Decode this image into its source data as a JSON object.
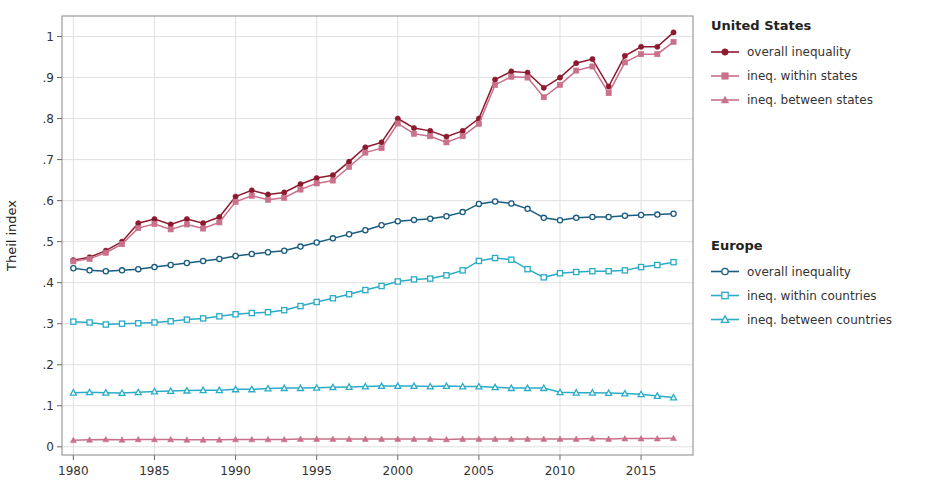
{
  "chart_data": {
    "type": "line",
    "ylabel": "Theil index",
    "x": [
      1980,
      1981,
      1982,
      1983,
      1984,
      1985,
      1986,
      1987,
      1988,
      1989,
      1990,
      1991,
      1992,
      1993,
      1994,
      1995,
      1996,
      1997,
      1998,
      1999,
      2000,
      2001,
      2002,
      2003,
      2004,
      2005,
      2006,
      2007,
      2008,
      2009,
      2010,
      2011,
      2012,
      2013,
      2014,
      2015,
      2016,
      2017
    ],
    "xlim": [
      1979.3,
      2018.2
    ],
    "xticks": [
      1980,
      1985,
      1990,
      1995,
      2000,
      2005,
      2010,
      2015
    ],
    "ylim": [
      -0.02,
      1.05
    ],
    "yticks": [
      0,
      {
        "value": 0.1,
        "label": ".1"
      },
      {
        "value": 0.2,
        "label": ".2"
      },
      {
        "value": 0.3,
        "label": ".3"
      },
      {
        "value": 0.4,
        "label": ".4"
      },
      {
        "value": 0.5,
        "label": ".5"
      },
      {
        "value": 0.6,
        "label": ".6"
      },
      {
        "value": 0.7,
        "label": ".7"
      },
      {
        "value": 0.8,
        "label": ".8"
      },
      {
        "value": 0.9,
        "label": ".9"
      },
      1
    ],
    "grid": true,
    "legend": "right",
    "series": [
      {
        "name": "overall inequality",
        "group": "United States",
        "color": "#8B1A2F",
        "marker": "circle",
        "values": [
          0.455,
          0.462,
          0.478,
          0.5,
          0.545,
          0.555,
          0.542,
          0.555,
          0.545,
          0.56,
          0.61,
          0.625,
          0.615,
          0.62,
          0.64,
          0.655,
          0.662,
          0.695,
          0.73,
          0.742,
          0.8,
          0.777,
          0.77,
          0.756,
          0.77,
          0.8,
          0.895,
          0.915,
          0.912,
          0.875,
          0.9,
          0.935,
          0.945,
          0.878,
          0.953,
          0.975,
          0.975,
          1.01
        ]
      },
      {
        "name": "ineq. within states",
        "group": "United States",
        "color": "#C9718A",
        "marker": "square",
        "values": [
          0.452,
          0.458,
          0.473,
          0.494,
          0.533,
          0.543,
          0.53,
          0.542,
          0.532,
          0.547,
          0.597,
          0.612,
          0.602,
          0.607,
          0.627,
          0.642,
          0.649,
          0.682,
          0.717,
          0.728,
          0.788,
          0.763,
          0.757,
          0.742,
          0.757,
          0.787,
          0.882,
          0.902,
          0.9,
          0.852,
          0.882,
          0.917,
          0.927,
          0.862,
          0.937,
          0.957,
          0.957,
          0.987
        ]
      },
      {
        "name": "ineq. between states",
        "group": "United States",
        "color": "#C9718A",
        "marker": "triangle",
        "values": [
          0.016,
          0.017,
          0.018,
          0.017,
          0.018,
          0.018,
          0.018,
          0.017,
          0.017,
          0.017,
          0.018,
          0.018,
          0.018,
          0.018,
          0.019,
          0.019,
          0.019,
          0.019,
          0.019,
          0.019,
          0.019,
          0.019,
          0.019,
          0.018,
          0.019,
          0.019,
          0.019,
          0.019,
          0.019,
          0.019,
          0.019,
          0.019,
          0.02,
          0.019,
          0.02,
          0.02,
          0.02,
          0.021
        ]
      },
      {
        "name": "overall inequality",
        "group": "Europe",
        "color": "#1A5C80",
        "marker": "open-circle",
        "values": [
          0.435,
          0.43,
          0.428,
          0.43,
          0.433,
          0.438,
          0.443,
          0.448,
          0.453,
          0.458,
          0.465,
          0.47,
          0.474,
          0.478,
          0.488,
          0.498,
          0.508,
          0.518,
          0.528,
          0.54,
          0.55,
          0.553,
          0.556,
          0.562,
          0.572,
          0.592,
          0.598,
          0.593,
          0.58,
          0.558,
          0.552,
          0.558,
          0.56,
          0.56,
          0.563,
          0.565,
          0.566,
          0.568
        ]
      },
      {
        "name": "ineq. within countries",
        "group": "Europe",
        "color": "#2BACC6",
        "marker": "open-square",
        "values": [
          0.305,
          0.303,
          0.298,
          0.3,
          0.301,
          0.303,
          0.306,
          0.31,
          0.313,
          0.318,
          0.323,
          0.326,
          0.328,
          0.333,
          0.343,
          0.353,
          0.362,
          0.372,
          0.382,
          0.392,
          0.403,
          0.408,
          0.41,
          0.418,
          0.43,
          0.453,
          0.46,
          0.456,
          0.433,
          0.413,
          0.423,
          0.426,
          0.428,
          0.428,
          0.43,
          0.438,
          0.443,
          0.45
        ]
      },
      {
        "name": "ineq. between countries",
        "group": "Europe",
        "color": "#2BACC6",
        "marker": "open-triangle",
        "values": [
          0.132,
          0.133,
          0.132,
          0.131,
          0.133,
          0.135,
          0.136,
          0.137,
          0.138,
          0.138,
          0.14,
          0.14,
          0.142,
          0.143,
          0.143,
          0.144,
          0.145,
          0.146,
          0.147,
          0.148,
          0.148,
          0.148,
          0.147,
          0.148,
          0.147,
          0.147,
          0.145,
          0.143,
          0.143,
          0.143,
          0.133,
          0.132,
          0.132,
          0.131,
          0.13,
          0.128,
          0.124,
          0.12
        ]
      }
    ]
  }
}
